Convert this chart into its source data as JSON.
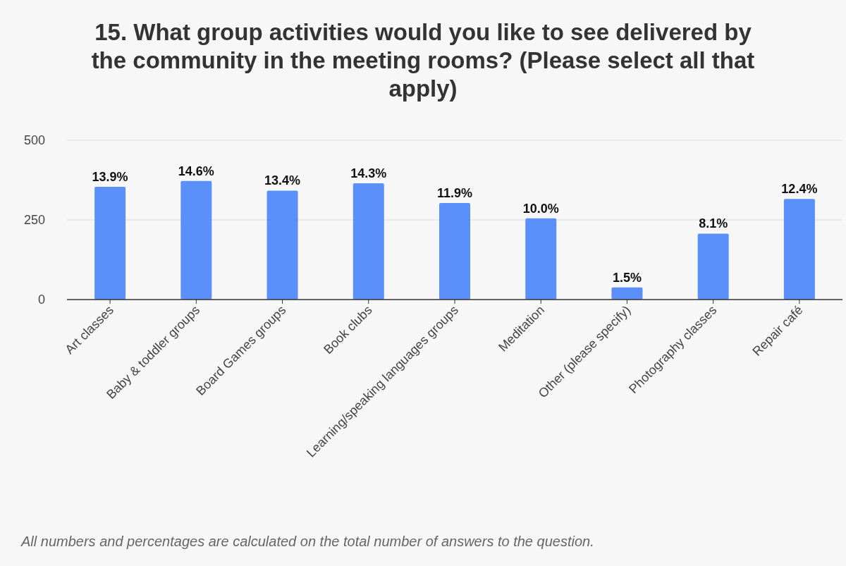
{
  "chart_data": {
    "type": "bar",
    "title": "15. What group activities would you like to see delivered by the community in the meeting rooms? (Please select all that apply)",
    "categories": [
      "Art classes",
      "Baby & toddler groups",
      "Board Games groups",
      "Book clubs",
      "Learning/speaking languages groups",
      "Meditation",
      "Other (please specify)",
      "Photography classes",
      "Repair café"
    ],
    "values": [
      354,
      372,
      342,
      365,
      303,
      255,
      38,
      207,
      316
    ],
    "color": "#5b8ff9",
    "ylim": [
      0,
      500
    ],
    "yticks": [
      0,
      250,
      500
    ],
    "grid": "y",
    "annotations": [
      {
        "text": "13.9%",
        "x": "Art classes",
        "y": 354
      },
      {
        "text": "14.6%",
        "x": "Baby & toddler groups",
        "y": 372
      },
      {
        "text": "13.4%",
        "x": "Board Games groups",
        "y": 342
      },
      {
        "text": "14.3%",
        "x": "Book clubs",
        "y": 365
      },
      {
        "text": "11.9%",
        "x": "Learning/speaking languages groups",
        "y": 303
      },
      {
        "text": "10.0%",
        "x": "Meditation",
        "y": 255
      },
      {
        "text": "1.5%",
        "x": "Other (please specify)",
        "y": 38
      },
      {
        "text": "8.1%",
        "x": "Photography classes",
        "y": 207
      },
      {
        "text": "12.4%",
        "x": "Repair café",
        "y": 316
      },
      "All numbers and percentages are calculated on the total number of answers to the question."
    ]
  }
}
